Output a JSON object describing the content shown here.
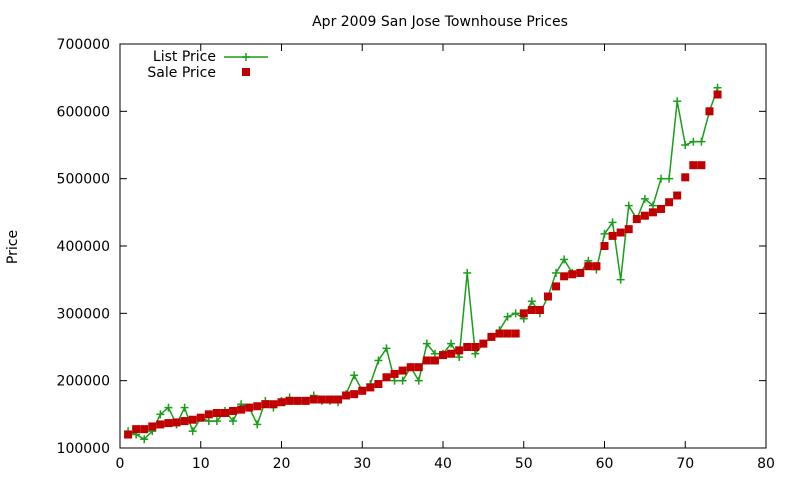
{
  "chart_data": {
    "type": "line",
    "title": "Apr 2009 San Jose Townhouse Prices",
    "xlabel": "",
    "ylabel": "Price",
    "xlim": [
      0,
      80
    ],
    "ylim": [
      100000,
      700000
    ],
    "x_ticks": [
      0,
      10,
      20,
      30,
      40,
      50,
      60,
      70,
      80
    ],
    "y_ticks": [
      100000,
      200000,
      300000,
      400000,
      500000,
      600000,
      700000
    ],
    "grid": false,
    "legend_position": "top-left",
    "series": [
      {
        "name": "List Price",
        "style": "line-plus",
        "color": "#1a9e1a",
        "x": [
          1,
          2,
          3,
          4,
          5,
          6,
          7,
          8,
          9,
          10,
          11,
          12,
          13,
          14,
          15,
          16,
          17,
          18,
          19,
          20,
          21,
          22,
          23,
          24,
          25,
          26,
          27,
          28,
          29,
          30,
          31,
          32,
          33,
          34,
          35,
          36,
          37,
          38,
          39,
          40,
          41,
          42,
          43,
          44,
          45,
          46,
          47,
          48,
          49,
          50,
          51,
          52,
          53,
          54,
          55,
          56,
          57,
          58,
          59,
          60,
          61,
          62,
          63,
          64,
          65,
          66,
          67,
          68,
          69,
          70,
          71,
          72,
          73,
          74
        ],
        "y": [
          125000,
          120000,
          113000,
          125000,
          150000,
          160000,
          135000,
          160000,
          125000,
          145000,
          140000,
          140000,
          155000,
          140000,
          165000,
          160000,
          135000,
          170000,
          160000,
          170000,
          175000,
          170000,
          170000,
          178000,
          170000,
          170000,
          168000,
          180000,
          208000,
          185000,
          195000,
          230000,
          248000,
          200000,
          200000,
          220000,
          200000,
          255000,
          240000,
          240000,
          255000,
          235000,
          360000,
          240000,
          255000,
          265000,
          275000,
          295000,
          300000,
          292000,
          318000,
          300000,
          325000,
          360000,
          380000,
          360000,
          360000,
          378000,
          365000,
          418000,
          435000,
          350000,
          460000,
          440000,
          470000,
          460000,
          500000,
          500000,
          615000,
          550000,
          555000,
          555000,
          600000,
          635000
        ]
      },
      {
        "name": "Sale Price",
        "style": "squares",
        "color": "#c00000",
        "x": [
          1,
          2,
          3,
          4,
          5,
          6,
          7,
          8,
          9,
          10,
          11,
          12,
          13,
          14,
          15,
          16,
          17,
          18,
          19,
          20,
          21,
          22,
          23,
          24,
          25,
          26,
          27,
          28,
          29,
          30,
          31,
          32,
          33,
          34,
          35,
          36,
          37,
          38,
          39,
          40,
          41,
          42,
          43,
          44,
          45,
          46,
          47,
          48,
          49,
          50,
          51,
          52,
          53,
          54,
          55,
          56,
          57,
          58,
          59,
          60,
          61,
          62,
          63,
          64,
          65,
          66,
          67,
          68,
          69,
          70,
          71,
          72,
          73,
          74
        ],
        "y": [
          120000,
          128000,
          128000,
          132000,
          135000,
          137000,
          138000,
          140000,
          142000,
          145000,
          150000,
          152000,
          152000,
          155000,
          157000,
          160000,
          162000,
          165000,
          165000,
          168000,
          170000,
          170000,
          170000,
          172000,
          172000,
          172000,
          172000,
          178000,
          180000,
          185000,
          190000,
          195000,
          205000,
          210000,
          215000,
          220000,
          220000,
          230000,
          230000,
          238000,
          240000,
          245000,
          250000,
          250000,
          255000,
          265000,
          270000,
          270000,
          270000,
          300000,
          305000,
          305000,
          325000,
          340000,
          355000,
          358000,
          360000,
          370000,
          370000,
          400000,
          415000,
          420000,
          425000,
          440000,
          445000,
          450000,
          455000,
          465000,
          475000,
          502000,
          520000,
          520000,
          600000,
          625000
        ]
      }
    ]
  }
}
